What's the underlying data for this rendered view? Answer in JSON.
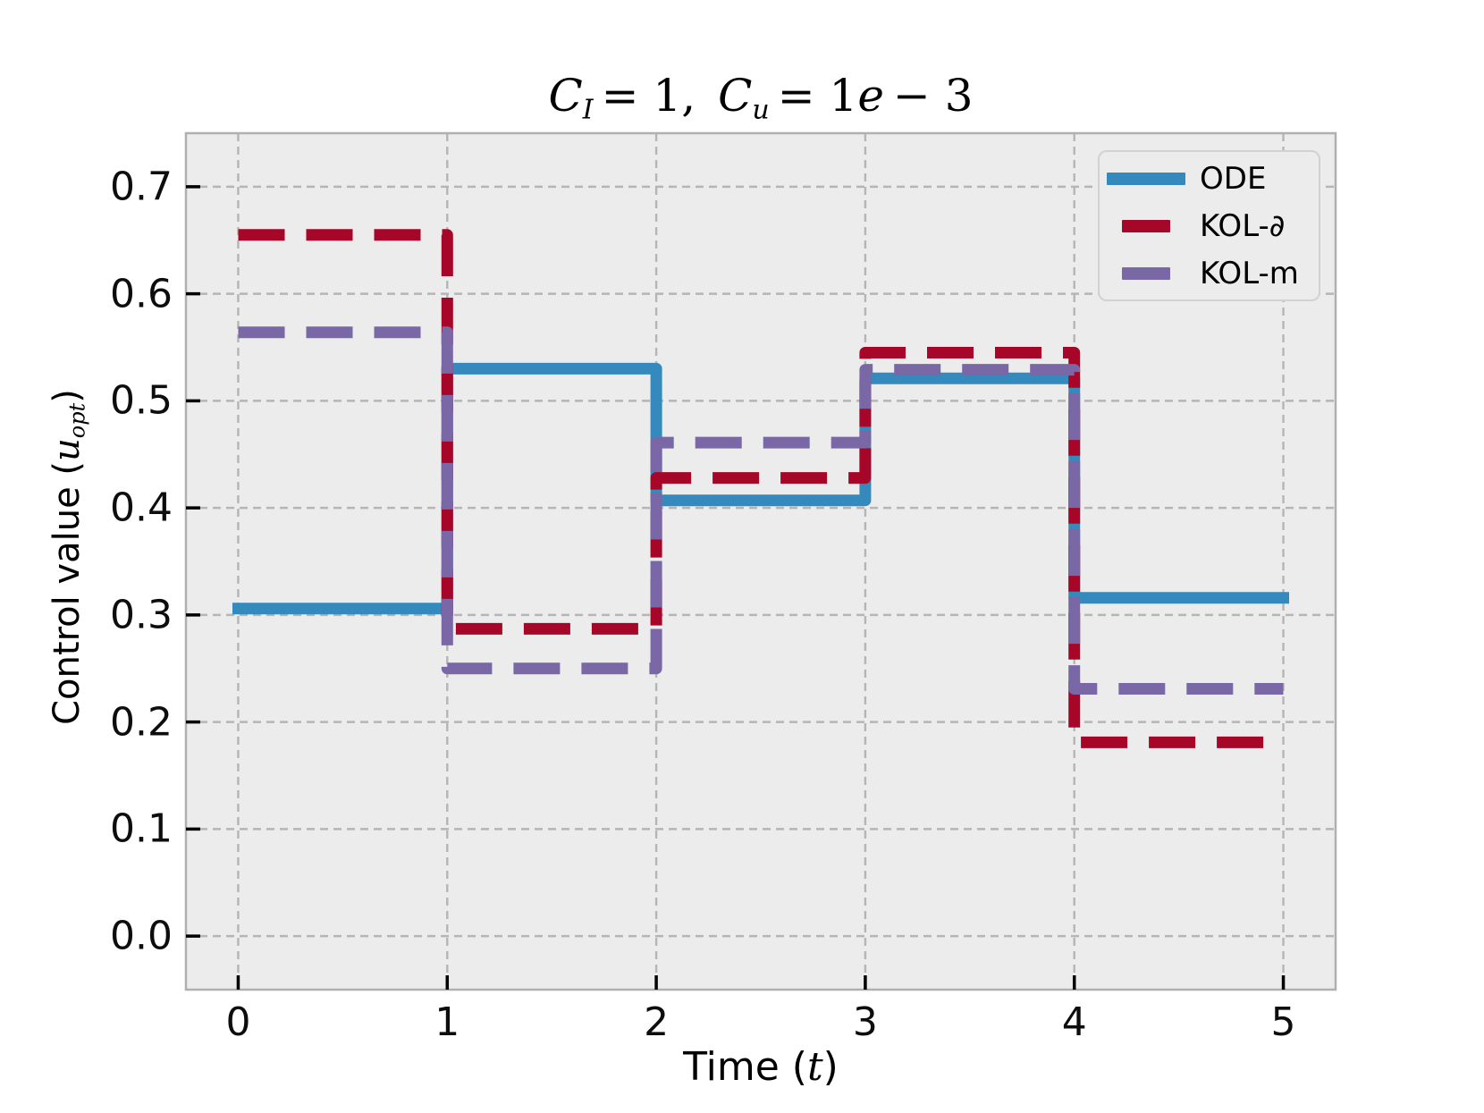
{
  "figure": {
    "title_parts": {
      "v1": "C",
      "s1": "I",
      "m1": "= 1,",
      "v2": "C",
      "s2": "u",
      "m2": "= 1",
      "v3": "e",
      "m3": "− 3"
    },
    "xlabel_parts": {
      "pre": "Time (",
      "var": "t",
      "post": ")"
    },
    "ylabel_parts": {
      "pre": "Control value (",
      "var": "u",
      "sub": "opt",
      "post": ")"
    }
  },
  "chart_data": {
    "type": "line",
    "subtype": "step-piecewise-constant",
    "title": "C_I = 1, C_u = 1e-3",
    "xlabel": "Time (t)",
    "ylabel": "Control value (u_opt)",
    "xlim": [
      -0.25,
      5.25
    ],
    "ylim": [
      -0.05,
      0.75
    ],
    "x_ticks": [
      0,
      1,
      2,
      3,
      4,
      5
    ],
    "x_tick_labels": [
      "0",
      "1",
      "2",
      "3",
      "4",
      "5"
    ],
    "y_ticks": [
      0.0,
      0.1,
      0.2,
      0.3,
      0.4,
      0.5,
      0.6,
      0.7
    ],
    "y_tick_labels": [
      "0.0",
      "0.1",
      "0.2",
      "0.3",
      "0.4",
      "0.5",
      "0.6",
      "0.7"
    ],
    "grid": {
      "visible": true,
      "linestyle": "dashed",
      "color": "#b5b5b5"
    },
    "axes_facecolor": "#ececec",
    "axes_edgecolor": "#b0b0b0",
    "legend": {
      "position": "upper right"
    },
    "step_times": [
      0,
      1,
      2,
      3,
      4,
      5
    ],
    "series": [
      {
        "name": "ODE",
        "color": "#348ABD",
        "linestyle": "solid",
        "values": [
          0.306,
          0.53,
          0.407,
          0.521,
          0.316
        ]
      },
      {
        "name": "KOL-∂",
        "color": "#A60628",
        "linestyle": "dashed",
        "values": [
          0.655,
          0.287,
          0.428,
          0.545,
          0.181
        ]
      },
      {
        "name": "KOL-m",
        "color": "#7A68A6",
        "linestyle": "dashed",
        "values": [
          0.564,
          0.25,
          0.461,
          0.529,
          0.231
        ]
      }
    ]
  }
}
